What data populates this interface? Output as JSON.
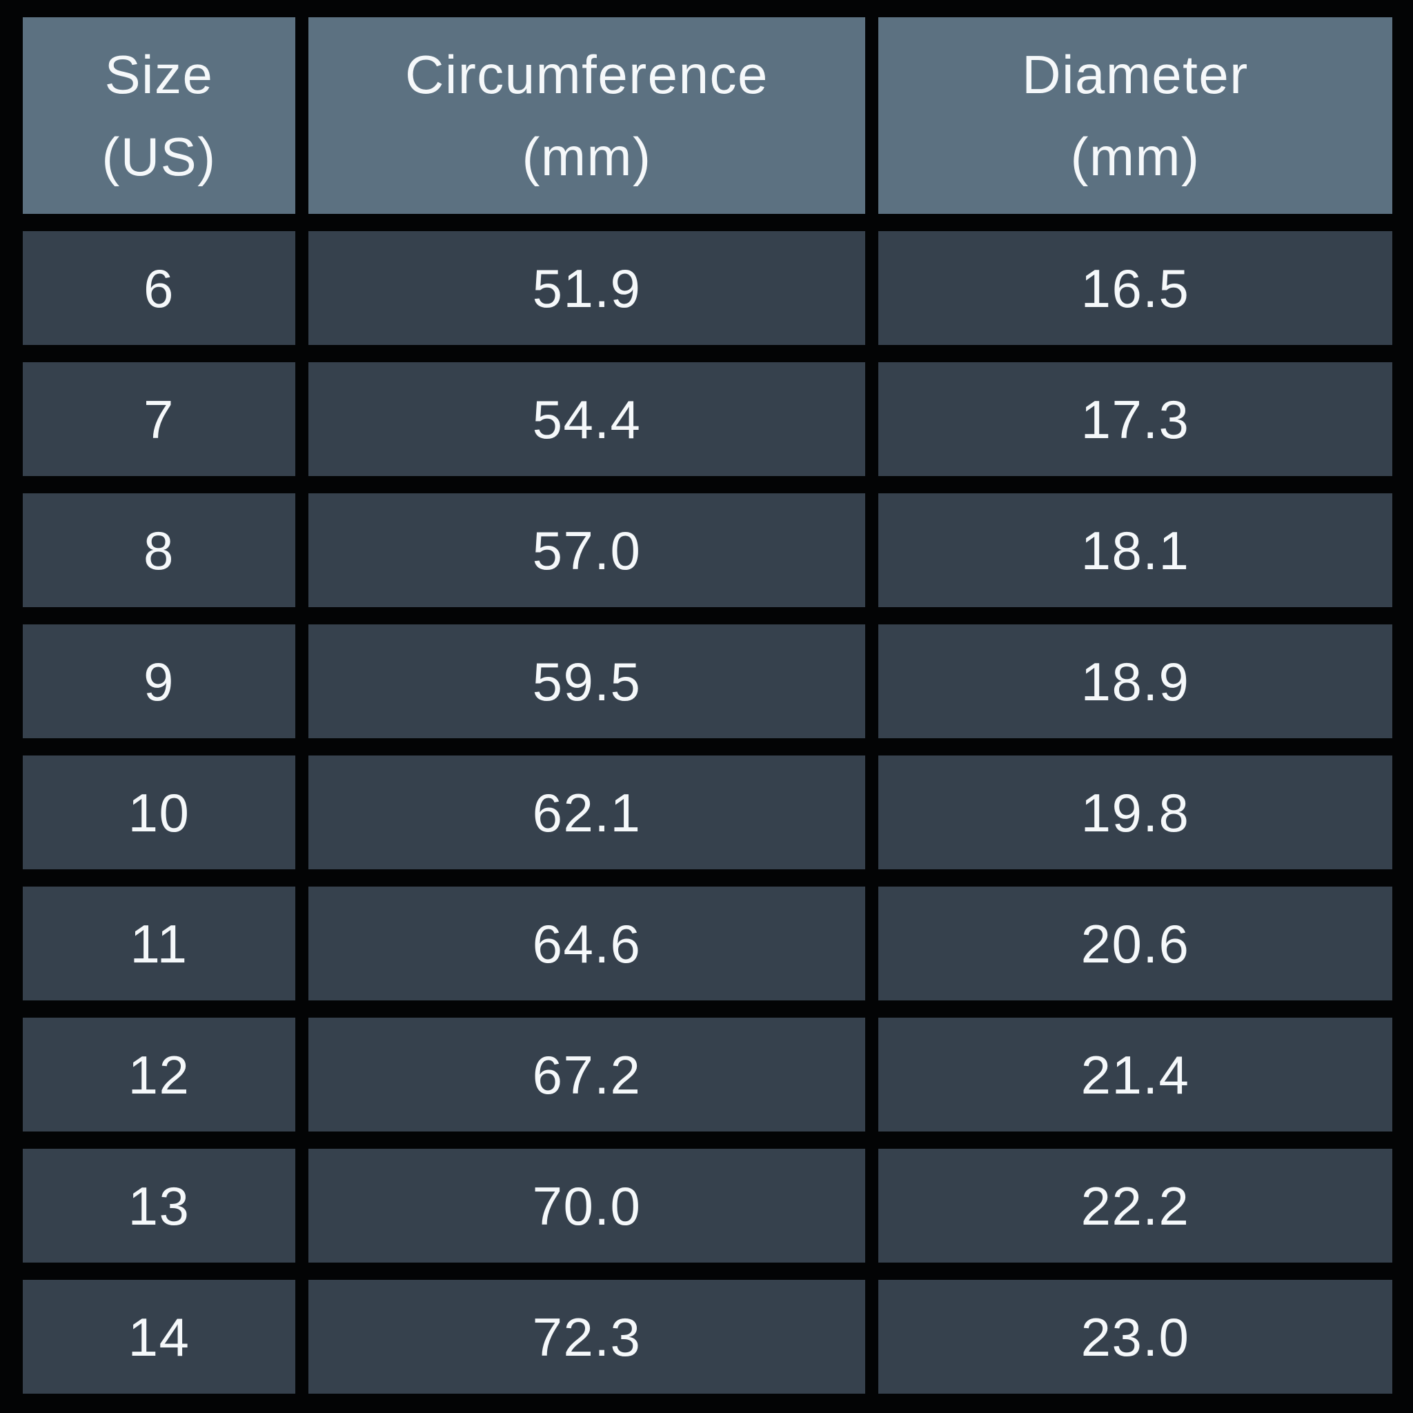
{
  "colors": {
    "background": "#030405",
    "header_cell": "#5c7181",
    "data_cell": "#36414d",
    "text": "#f5f8fa"
  },
  "table": {
    "headers": [
      {
        "label": "Size (US)",
        "line1": "Size",
        "line2": "(US)"
      },
      {
        "label": "Circumference (mm)",
        "line1": "Circumference",
        "line2": "(mm)"
      },
      {
        "label": "Diameter (mm)",
        "line1": "Diameter",
        "line2": "(mm)"
      }
    ],
    "rows": [
      {
        "size": "6",
        "circumference": "51.9",
        "diameter": "16.5"
      },
      {
        "size": "7",
        "circumference": "54.4",
        "diameter": "17.3"
      },
      {
        "size": "8",
        "circumference": "57.0",
        "diameter": "18.1"
      },
      {
        "size": "9",
        "circumference": "59.5",
        "diameter": "18.9"
      },
      {
        "size": "10",
        "circumference": "62.1",
        "diameter": "19.8"
      },
      {
        "size": "11",
        "circumference": "64.6",
        "diameter": "20.6"
      },
      {
        "size": "12",
        "circumference": "67.2",
        "diameter": "21.4"
      },
      {
        "size": "13",
        "circumference": "70.0",
        "diameter": "22.2"
      },
      {
        "size": "14",
        "circumference": "72.3",
        "diameter": "23.0"
      }
    ]
  },
  "chart_data": {
    "type": "table",
    "columns": [
      "Size (US)",
      "Circumference (mm)",
      "Diameter (mm)"
    ],
    "rows": [
      [
        "6",
        "51.9",
        "16.5"
      ],
      [
        "7",
        "54.4",
        "17.3"
      ],
      [
        "8",
        "57.0",
        "18.1"
      ],
      [
        "9",
        "59.5",
        "18.9"
      ],
      [
        "10",
        "62.1",
        "19.8"
      ],
      [
        "11",
        "64.6",
        "20.6"
      ],
      [
        "12",
        "67.2",
        "21.4"
      ],
      [
        "13",
        "70.0",
        "22.2"
      ],
      [
        "14",
        "72.3",
        "23.0"
      ]
    ]
  }
}
